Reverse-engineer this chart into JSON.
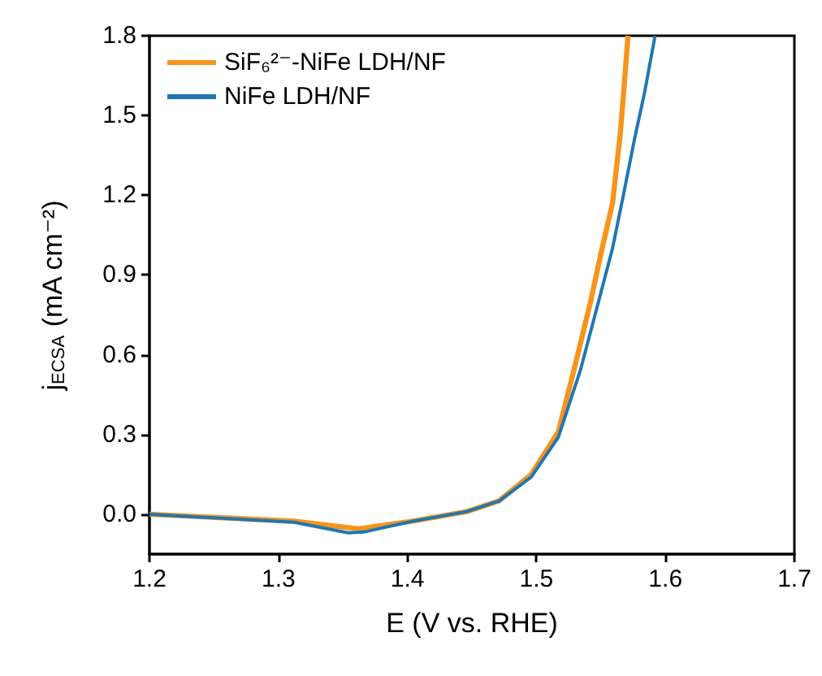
{
  "chart_data": {
    "type": "line",
    "xlabel": "E (V vs. RHE)",
    "ylabel": "j$_{ECSA}$ (mA cm⁻²)",
    "xlim": [
      1.2,
      1.7
    ],
    "xticks": [
      1.2,
      1.3,
      1.4,
      1.5,
      1.6,
      1.7
    ],
    "ylim": [
      -0.15,
      1.8
    ],
    "yticks": [
      {
        "value": 0,
        "label": "0.0"
      },
      0.3,
      0.6,
      0.9,
      1.2,
      1.5,
      1.8
    ],
    "grid": false,
    "legend": "top left",
    "marker": "none",
    "line_style": "solid",
    "series": [
      {
        "name": "SiF₆²⁻-NiFe LDH/NF",
        "color": "#f7941d",
        "x": [
          1.2,
          1.312,
          1.362,
          1.404,
          1.446,
          1.471,
          1.496,
          1.517,
          1.53,
          1.542,
          1.55,
          1.559,
          1.565,
          1.568,
          1.571
        ],
        "values": [
          0,
          -0.026,
          -0.055,
          -0.026,
          0.01,
          0.05,
          0.15,
          0.31,
          0.56,
          0.8,
          0.98,
          1.17,
          1.43,
          1.61,
          1.8
        ]
      },
      {
        "name": "NiFe LDH/NF",
        "color": "#1f77b4",
        "x": [
          1.2,
          1.312,
          1.354,
          1.366,
          1.404,
          1.446,
          1.471,
          1.496,
          1.517,
          1.534,
          1.546,
          1.559,
          1.567,
          1.576,
          1.584,
          1.592
        ],
        "values": [
          0,
          -0.03,
          -0.07,
          -0.067,
          -0.026,
          0.01,
          0.05,
          0.14,
          0.29,
          0.54,
          0.76,
          1.0,
          1.19,
          1.41,
          1.59,
          1.8
        ]
      }
    ]
  }
}
